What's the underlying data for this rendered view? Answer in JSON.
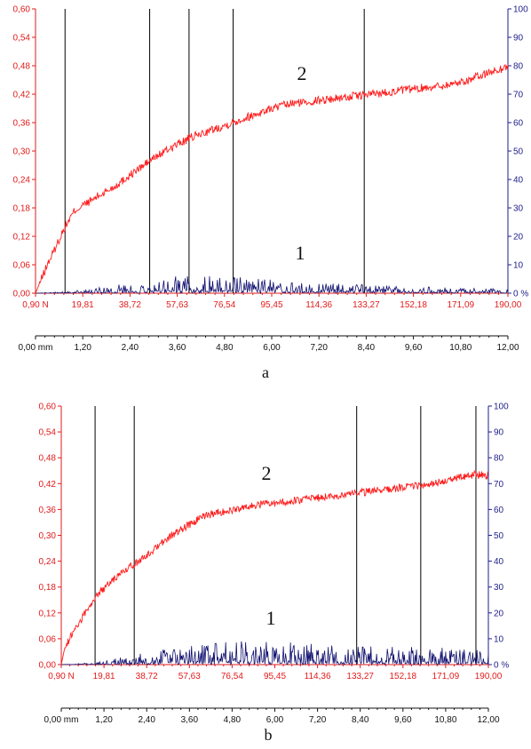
{
  "colors": {
    "friction": "#ff1a1a",
    "acoustic": "#101070",
    "left_axis": "#e21b1b",
    "right_axis": "#1e1e8c",
    "markers": "#000000"
  },
  "chart_data": [
    {
      "type": "line",
      "panel_label": "a",
      "left_axis": {
        "ticks": [
          "0,00",
          "0,06",
          "0,12",
          "0,18",
          "0,24",
          "0,30",
          "0,36",
          "0,42",
          "0,48",
          "0,54",
          "0,60"
        ],
        "ylim": [
          0,
          0.6
        ]
      },
      "right_axis": {
        "ticks": [
          "0 %",
          "10",
          "20",
          "30",
          "40",
          "50",
          "60",
          "70",
          "80",
          "90",
          "100"
        ],
        "ylim": [
          0,
          100
        ]
      },
      "load_axis": {
        "ticks": [
          "0,90 N",
          "19,81",
          "38,72",
          "57,63",
          "76,54",
          "95,45",
          "114,36",
          "133,27",
          "152,18",
          "171,09",
          "190,00"
        ],
        "xlim": [
          0.9,
          190
        ]
      },
      "distance_axis": {
        "ticks": [
          "0,00 mm",
          "1,20",
          "2,40",
          "3,60",
          "4,80",
          "6,00",
          "7,20",
          "8,40",
          "9,60",
          "10,80",
          "12,00"
        ],
        "xlim": [
          0,
          12
        ]
      },
      "vertical_markers_mm": [
        0.75,
        2.9,
        3.9,
        5.02,
        8.35
      ],
      "series": [
        {
          "label": "2",
          "axis": "left",
          "x_mm": [
            0,
            0.1,
            0.3,
            0.5,
            0.75,
            1.0,
            1.5,
            2.0,
            2.5,
            3.0,
            3.5,
            4.0,
            4.5,
            5.0,
            5.5,
            6.0,
            6.5,
            7.0,
            7.5,
            8.0,
            8.5,
            9.0,
            9.5,
            10.0,
            10.5,
            11.0,
            11.5,
            12.0
          ],
          "y": [
            0.0,
            0.02,
            0.06,
            0.095,
            0.14,
            0.175,
            0.2,
            0.225,
            0.255,
            0.285,
            0.31,
            0.33,
            0.345,
            0.36,
            0.375,
            0.39,
            0.4,
            0.405,
            0.41,
            0.415,
            0.42,
            0.425,
            0.43,
            0.435,
            0.44,
            0.45,
            0.465,
            0.478
          ]
        },
        {
          "label": "1",
          "axis": "right",
          "x_mm": [
            0,
            1.0,
            2.0,
            3.0,
            4.0,
            5.0,
            6.0,
            7.0,
            8.0,
            9.0,
            10.0,
            11.0,
            12.0
          ],
          "y_percent": [
            0,
            0.5,
            1.5,
            3.0,
            3.5,
            3.2,
            2.8,
            2.2,
            1.8,
            1.5,
            1.2,
            1.0,
            0.8
          ]
        }
      ]
    },
    {
      "type": "line",
      "panel_label": "b",
      "left_axis": {
        "ticks": [
          "0,00",
          "0,06",
          "0,12",
          "0,18",
          "0,24",
          "0,30",
          "0,36",
          "0,42",
          "0,48",
          "0,54",
          "0,60"
        ],
        "ylim": [
          0,
          0.6
        ]
      },
      "right_axis": {
        "ticks": [
          "0 %",
          "10",
          "20",
          "30",
          "40",
          "50",
          "60",
          "70",
          "80",
          "90",
          "100"
        ],
        "ylim": [
          0,
          100
        ]
      },
      "load_axis": {
        "ticks": [
          "0,90 N",
          "19,81",
          "38,72",
          "57,63",
          "76,54",
          "95,45",
          "114,36",
          "133,27",
          "152,18",
          "171,09",
          "190,00"
        ],
        "xlim": [
          0.9,
          190
        ]
      },
      "distance_axis": {
        "ticks": [
          "0,00 mm",
          "1,20",
          "2,40",
          "3,60",
          "4,80",
          "6,00",
          "7,20",
          "8,40",
          "9,60",
          "10,80",
          "12,00"
        ],
        "xlim": [
          0,
          12
        ]
      },
      "vertical_markers_mm": [
        0.95,
        2.05,
        8.3,
        10.1,
        11.65
      ],
      "series": [
        {
          "label": "2",
          "axis": "left",
          "x_mm": [
            0,
            0.1,
            0.3,
            0.6,
            1.0,
            1.5,
            2.0,
            2.5,
            3.0,
            3.5,
            4.0,
            4.5,
            5.0,
            5.5,
            6.0,
            6.5,
            7.0,
            7.5,
            8.0,
            8.5,
            9.0,
            9.5,
            10.0,
            10.5,
            11.0,
            11.5,
            12.0
          ],
          "y": [
            0.0,
            0.04,
            0.07,
            0.11,
            0.16,
            0.2,
            0.23,
            0.26,
            0.295,
            0.32,
            0.345,
            0.355,
            0.36,
            0.37,
            0.375,
            0.38,
            0.385,
            0.39,
            0.395,
            0.4,
            0.405,
            0.41,
            0.415,
            0.42,
            0.43,
            0.44,
            0.44
          ]
        },
        {
          "label": "1",
          "axis": "right",
          "x_mm": [
            0,
            1.0,
            2.0,
            3.0,
            4.0,
            5.0,
            6.0,
            7.0,
            8.0,
            9.0,
            10.0,
            11.0,
            12.0
          ],
          "y_percent": [
            0,
            0.5,
            2.0,
            3.5,
            4.5,
            5.0,
            5.0,
            4.5,
            4.0,
            4.0,
            3.8,
            3.5,
            3.2
          ]
        }
      ]
    }
  ]
}
